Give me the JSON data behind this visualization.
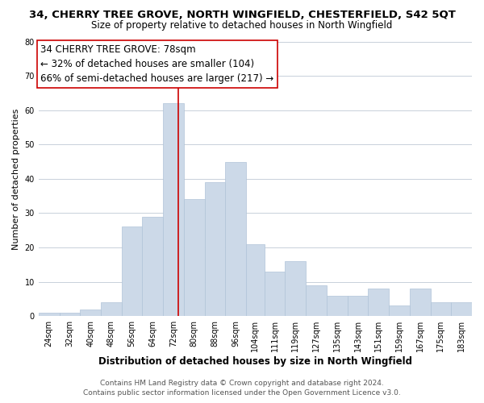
{
  "title": "34, CHERRY TREE GROVE, NORTH WINGFIELD, CHESTERFIELD, S42 5QT",
  "subtitle": "Size of property relative to detached houses in North Wingfield",
  "xlabel": "Distribution of detached houses by size in North Wingfield",
  "ylabel": "Number of detached properties",
  "bar_color": "#ccd9e8",
  "bar_edge_color": "#b0c4d8",
  "background_color": "#ffffff",
  "grid_color": "#c8d0da",
  "vline_x": 78,
  "vline_color": "#cc0000",
  "categories": [
    "24sqm",
    "32sqm",
    "40sqm",
    "48sqm",
    "56sqm",
    "64sqm",
    "72sqm",
    "80sqm",
    "88sqm",
    "96sqm",
    "104sqm",
    "111sqm",
    "119sqm",
    "127sqm",
    "135sqm",
    "143sqm",
    "151sqm",
    "159sqm",
    "167sqm",
    "175sqm",
    "183sqm"
  ],
  "bin_edges": [
    24,
    32,
    40,
    48,
    56,
    64,
    72,
    80,
    88,
    96,
    104,
    111,
    119,
    127,
    135,
    143,
    151,
    159,
    167,
    175,
    183,
    191
  ],
  "values": [
    1,
    1,
    2,
    4,
    26,
    29,
    62,
    34,
    39,
    45,
    21,
    13,
    16,
    9,
    6,
    6,
    8,
    3,
    8,
    4,
    4
  ],
  "ylim": [
    0,
    80
  ],
  "yticks": [
    0,
    10,
    20,
    30,
    40,
    50,
    60,
    70,
    80
  ],
  "annotation_title": "34 CHERRY TREE GROVE: 78sqm",
  "annotation_line1": "← 32% of detached houses are smaller (104)",
  "annotation_line2": "66% of semi-detached houses are larger (217) →",
  "annotation_box_color": "#ffffff",
  "annotation_box_edge": "#cc0000",
  "footer1": "Contains HM Land Registry data © Crown copyright and database right 2024.",
  "footer2": "Contains public sector information licensed under the Open Government Licence v3.0.",
  "title_fontsize": 9.5,
  "subtitle_fontsize": 8.5,
  "xlabel_fontsize": 8.5,
  "ylabel_fontsize": 8,
  "tick_fontsize": 7,
  "annotation_fontsize": 8.5,
  "footer_fontsize": 6.5
}
